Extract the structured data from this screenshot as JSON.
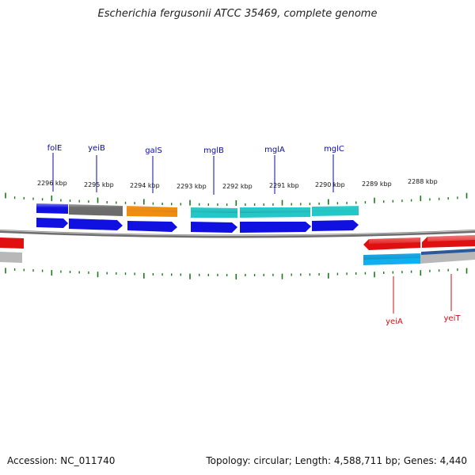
{
  "title": "Escherichia fergusonii ATCC 35469, complete genome",
  "footer": {
    "accession": "Accession: NC_011740",
    "summary": "Topology: circular; Length: 4,588,711 bp; Genes: 4,440"
  },
  "colors": {
    "background": "#ffffff",
    "tick_marks": "#1a7a1a",
    "backbone": "#8a8a8a",
    "label_forward": "#0a0aa8",
    "label_reverse": "#cc1111",
    "cds_blue": "#1010e0",
    "cds_gray": "#6b6b6b",
    "cds_orange": "#f08c10",
    "cds_cyan": "#22c8c8",
    "cds_red": "#e01010",
    "cds_lightgray": "#b8b8b8",
    "cds_skyblue": "#10b0f0"
  },
  "scale_labels": [
    "2296 kbp",
    "2295 kbp",
    "2294 kbp",
    "2293 kbp",
    "2292 kbp",
    "2291 kbp",
    "2290 kbp",
    "2289 kbp",
    "2288 kbp"
  ],
  "forward_gene_labels": [
    "folE",
    "yeiB",
    "galS",
    "mglB",
    "mglA",
    "mglC"
  ],
  "reverse_gene_labels": [
    "yeiA",
    "yeiT"
  ]
}
